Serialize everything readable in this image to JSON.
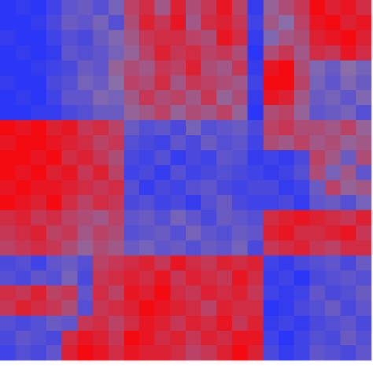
{
  "chart_data": {
    "type": "heatmap",
    "zlim": [
      -1,
      1
    ],
    "colors": [
      "#2030ff",
      "#8a6ea8",
      "#ff0000"
    ],
    "values": [
      [
        -0.9,
        -0.8,
        -0.9,
        -0.7,
        -0.4,
        -0.3,
        -0.5,
        -0.2,
        0.4,
        0.6,
        0.2,
        0.7,
        0.3,
        0.5,
        0.8,
        0.4,
        -0.8,
        0.1,
        0.3,
        0.5,
        0.9,
        0.7,
        0.8,
        0.6
      ],
      [
        -0.9,
        -0.9,
        -0.8,
        -0.6,
        -0.3,
        -0.4,
        -0.2,
        -0.5,
        0.3,
        0.7,
        0.5,
        0.8,
        0.2,
        0.6,
        0.7,
        0.5,
        -0.7,
        0.2,
        0.0,
        0.4,
        0.8,
        0.9,
        0.7,
        0.8
      ],
      [
        -0.8,
        -0.9,
        -0.9,
        -0.7,
        -0.5,
        -0.6,
        -0.3,
        -0.1,
        0.2,
        0.5,
        0.6,
        0.6,
        0.4,
        0.3,
        0.8,
        0.6,
        -0.8,
        -0.1,
        0.2,
        0.3,
        0.7,
        0.8,
        0.9,
        0.7
      ],
      [
        -0.9,
        -0.8,
        -0.9,
        -0.8,
        -0.4,
        -0.5,
        -0.4,
        -0.2,
        0.1,
        0.4,
        0.7,
        0.5,
        0.6,
        0.4,
        0.5,
        0.3,
        -0.9,
        0.3,
        0.5,
        0.2,
        0.6,
        0.5,
        0.8,
        0.6
      ],
      [
        -0.9,
        -0.9,
        -0.8,
        -0.7,
        -0.6,
        -0.3,
        -0.4,
        0.1,
        0.3,
        0.2,
        0.5,
        0.4,
        0.7,
        0.3,
        0.2,
        0.5,
        -0.8,
        0.8,
        0.9,
        0.3,
        -0.1,
        -0.3,
        0.0,
        -0.2
      ],
      [
        -0.8,
        -0.9,
        -0.9,
        -0.6,
        -0.5,
        -0.2,
        -0.3,
        0.0,
        0.4,
        0.3,
        0.6,
        0.2,
        0.5,
        0.4,
        0.3,
        0.2,
        -0.7,
        0.9,
        0.9,
        0.4,
        -0.2,
        -0.4,
        -0.1,
        -0.3
      ],
      [
        -0.9,
        -0.8,
        -0.9,
        -0.7,
        -0.4,
        -0.4,
        -0.1,
        -0.2,
        0.2,
        0.5,
        0.3,
        0.4,
        0.2,
        0.5,
        0.1,
        0.3,
        -0.8,
        0.8,
        0.7,
        0.2,
        -0.3,
        -0.2,
        -0.4,
        -0.1
      ],
      [
        -0.9,
        -0.9,
        -0.8,
        -0.8,
        -0.6,
        -0.5,
        -0.3,
        -0.3,
        0.1,
        0.2,
        0.4,
        0.1,
        0.3,
        0.2,
        0.4,
        0.1,
        -0.9,
        0.3,
        0.4,
        0.1,
        -0.4,
        -0.3,
        -0.2,
        -0.5
      ],
      [
        0.9,
        0.8,
        0.9,
        0.7,
        0.8,
        0.5,
        0.6,
        0.4,
        -0.3,
        -0.5,
        -0.4,
        -0.6,
        -0.2,
        -0.5,
        -0.4,
        -0.3,
        -0.6,
        0.4,
        0.5,
        0.3,
        0.3,
        0.2,
        0.4,
        0.1
      ],
      [
        0.8,
        0.9,
        0.9,
        0.8,
        0.7,
        0.6,
        0.4,
        0.5,
        -0.5,
        -0.6,
        -0.7,
        -0.4,
        -0.6,
        -0.3,
        -0.5,
        -0.4,
        -0.7,
        0.3,
        0.2,
        0.4,
        0.2,
        0.3,
        0.1,
        0.2
      ],
      [
        0.9,
        0.9,
        0.8,
        0.9,
        0.6,
        0.7,
        0.5,
        0.3,
        -0.6,
        -0.7,
        -0.5,
        -0.8,
        -0.6,
        -0.7,
        -0.4,
        -0.5,
        -0.8,
        -0.7,
        -0.8,
        -0.6,
        0.4,
        0.2,
        -0.3,
        0.3
      ],
      [
        0.9,
        0.8,
        0.9,
        0.7,
        0.8,
        0.5,
        0.7,
        0.4,
        -0.7,
        -0.6,
        -0.8,
        -0.5,
        -0.7,
        -0.6,
        -0.5,
        -0.6,
        -0.7,
        -0.8,
        -0.7,
        -0.5,
        0.3,
        -0.2,
        0.2,
        -0.4
      ],
      [
        0.8,
        0.9,
        0.8,
        0.8,
        0.7,
        0.6,
        0.5,
        0.6,
        -0.5,
        -0.8,
        -0.6,
        -0.7,
        -0.5,
        -0.4,
        -0.6,
        -0.7,
        -0.6,
        -0.6,
        -0.8,
        -0.7,
        -0.3,
        0.4,
        0.1,
        0.2
      ],
      [
        0.9,
        0.8,
        0.7,
        0.9,
        0.6,
        0.4,
        0.6,
        0.5,
        -0.6,
        -0.5,
        -0.7,
        -0.6,
        -0.8,
        -0.5,
        -0.3,
        -0.6,
        -0.7,
        -0.7,
        -0.6,
        -0.8,
        -0.4,
        -0.3,
        -0.5,
        -0.2
      ],
      [
        0.6,
        0.7,
        0.5,
        0.6,
        0.4,
        0.3,
        0.2,
        0.4,
        -0.4,
        -0.3,
        -0.5,
        -0.2,
        -0.4,
        -0.6,
        -0.3,
        -0.4,
        -0.5,
        0.6,
        0.7,
        0.8,
        0.7,
        0.6,
        0.5,
        0.7
      ],
      [
        0.5,
        0.6,
        0.7,
        0.4,
        0.5,
        0.2,
        0.4,
        0.3,
        -0.5,
        -0.4,
        -0.3,
        -0.5,
        -0.2,
        -0.4,
        -0.5,
        -0.3,
        -0.4,
        0.7,
        0.8,
        0.6,
        0.6,
        0.7,
        0.8,
        0.5
      ],
      [
        0.4,
        0.5,
        0.6,
        0.5,
        0.3,
        0.1,
        0.3,
        0.2,
        -0.3,
        -0.2,
        -0.4,
        -0.3,
        -0.5,
        -0.3,
        -0.4,
        -0.2,
        -0.6,
        0.5,
        0.6,
        0.7,
        0.5,
        0.4,
        0.6,
        0.6
      ],
      [
        -0.6,
        -0.5,
        -0.7,
        -0.4,
        -0.3,
        -0.5,
        0.4,
        0.5,
        0.6,
        0.7,
        0.5,
        0.8,
        0.6,
        0.5,
        0.7,
        0.6,
        0.7,
        -0.7,
        -0.8,
        -0.6,
        -0.5,
        -0.4,
        -0.6,
        -0.3
      ],
      [
        -0.5,
        -0.6,
        -0.4,
        -0.5,
        -0.2,
        -0.6,
        0.5,
        0.6,
        0.7,
        0.6,
        0.8,
        0.5,
        0.7,
        0.6,
        0.5,
        0.8,
        0.6,
        -0.8,
        -0.7,
        -0.9,
        -0.6,
        -0.5,
        -0.4,
        -0.5
      ],
      [
        0.6,
        0.5,
        0.7,
        0.4,
        0.5,
        -0.4,
        0.6,
        0.4,
        0.8,
        0.7,
        0.9,
        0.6,
        0.5,
        0.7,
        0.6,
        0.7,
        0.5,
        -0.7,
        -0.8,
        -0.7,
        -0.4,
        -0.6,
        -0.5,
        -0.3
      ],
      [
        0.5,
        0.7,
        0.6,
        0.5,
        0.3,
        -0.5,
        0.5,
        0.6,
        0.7,
        0.9,
        0.8,
        0.7,
        0.6,
        0.4,
        0.7,
        0.6,
        0.6,
        -0.9,
        -0.8,
        -0.6,
        -0.5,
        -0.3,
        -0.6,
        -0.4
      ],
      [
        -0.5,
        -0.6,
        -0.5,
        -0.3,
        -0.4,
        0.5,
        0.6,
        0.4,
        0.6,
        0.8,
        0.7,
        0.5,
        0.7,
        0.6,
        0.8,
        0.5,
        0.7,
        -0.8,
        -0.7,
        -0.8,
        -0.6,
        -0.5,
        -0.4,
        -0.6
      ],
      [
        -0.6,
        -0.4,
        -0.5,
        -0.6,
        0.6,
        0.8,
        0.7,
        0.5,
        0.9,
        0.8,
        0.6,
        0.7,
        0.5,
        0.7,
        0.6,
        0.8,
        0.8,
        -0.7,
        -0.9,
        -0.7,
        -0.5,
        -0.6,
        -0.3,
        -0.5
      ],
      [
        -0.7,
        -0.5,
        -0.6,
        -0.4,
        0.7,
        0.9,
        0.8,
        0.6,
        0.8,
        0.7,
        0.7,
        0.6,
        0.4,
        0.5,
        0.7,
        0.9,
        0.7,
        -0.6,
        -0.8,
        -0.7,
        -0.4,
        -0.5,
        -0.6,
        -0.4
      ]
    ]
  }
}
